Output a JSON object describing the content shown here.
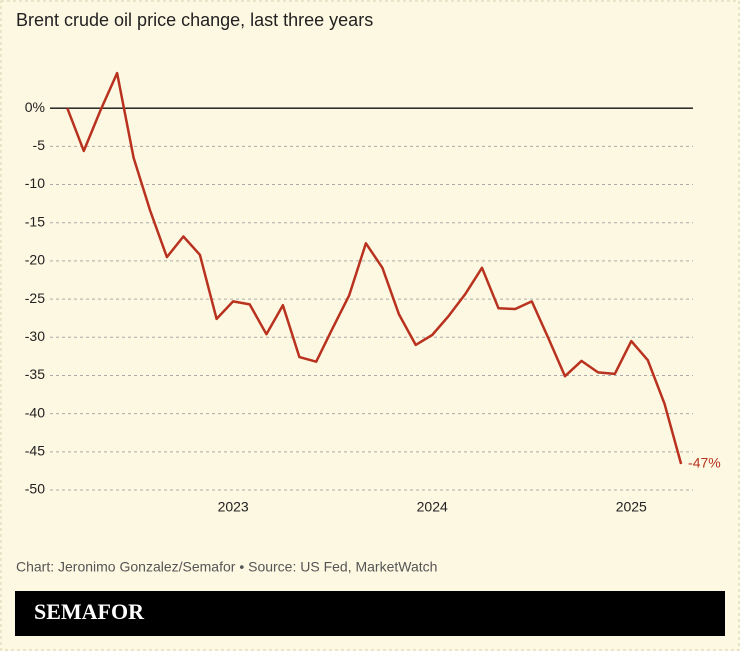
{
  "chart_data": {
    "type": "line",
    "title": "Brent crude oil price change, last three years",
    "x": [
      2022.167,
      2022.25,
      2022.333,
      2022.417,
      2022.5,
      2022.583,
      2022.667,
      2022.75,
      2022.833,
      2022.917,
      2023,
      2023.083,
      2023.167,
      2023.25,
      2023.333,
      2023.417,
      2023.5,
      2023.583,
      2023.667,
      2023.75,
      2023.833,
      2023.917,
      2024,
      2024.083,
      2024.167,
      2024.25,
      2024.333,
      2024.417,
      2024.5,
      2024.583,
      2024.667,
      2024.75,
      2024.833,
      2024.917,
      2025,
      2025.083,
      2025.167,
      2025.25
    ],
    "values": [
      0,
      -5.6,
      -0.3,
      4.6,
      -6.5,
      -13.4,
      -19.5,
      -16.8,
      -19.2,
      -27.6,
      -25.3,
      -25.7,
      -29.6,
      -25.8,
      -32.6,
      -33.2,
      -28.8,
      -24.5,
      -17.7,
      -20.9,
      -27,
      -31,
      -29.7,
      -27.2,
      -24.3,
      -20.9,
      -26.2,
      -26.3,
      -25.3,
      -30.1,
      -35.1,
      -33.1,
      -34.6,
      -34.8,
      -30.5,
      -33,
      -38.7,
      -46.6
    ],
    "value_labels": [
      null,
      null,
      null,
      null,
      null,
      null,
      null,
      null,
      null,
      null,
      null,
      null,
      null,
      null,
      null,
      null,
      null,
      null,
      null,
      null,
      null,
      null,
      null,
      null,
      null,
      null,
      null,
      null,
      null,
      null,
      null,
      null,
      null,
      null,
      null,
      null,
      null,
      "-47%"
    ],
    "color": "#b8321f",
    "xlim": [
      2022.08,
      2025.31
    ],
    "xticks": [
      2023,
      2024,
      2025
    ],
    "ylim": [
      -50,
      5
    ],
    "yticks": [
      {
        "value": 0,
        "label": "0%"
      },
      -5,
      -10,
      -15,
      -20,
      -25,
      -30,
      -35,
      -40,
      -45,
      -50
    ],
    "grid": true,
    "source": "Chart: Jeronimo Gonzalez/Semafor • Source: US Fed, MarketWatch",
    "logo": "SEMAFOR"
  }
}
